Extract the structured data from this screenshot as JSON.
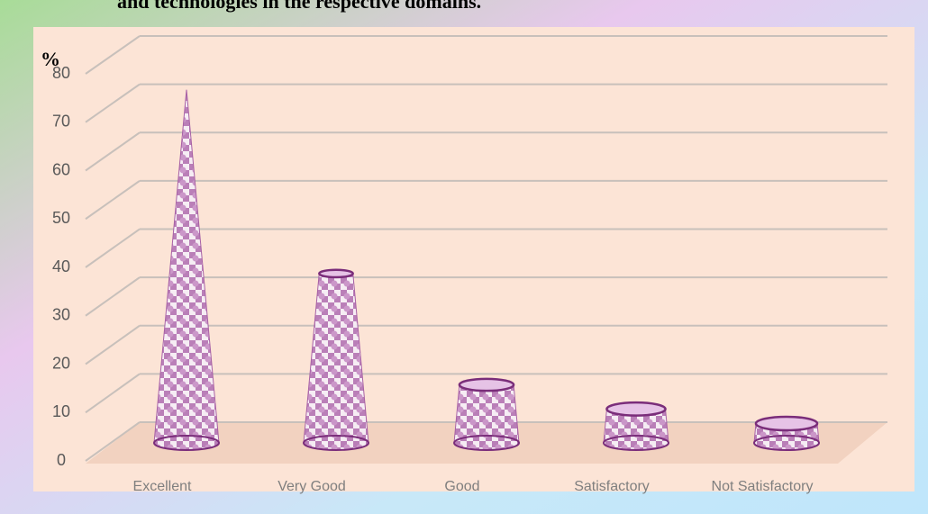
{
  "chart_data": {
    "type": "cone",
    "title": "and technologies in the respective domains.",
    "y_label": "%",
    "categories": [
      "Excellent",
      "Very Good",
      "Good",
      "Satisfactory",
      "Not Satisfactory"
    ],
    "values": [
      73,
      35,
      12,
      7,
      4
    ],
    "color": "#a35aa3",
    "ylim": [
      0,
      80
    ],
    "yticks": [
      0,
      10,
      20,
      30,
      40,
      50,
      60,
      70,
      80
    ],
    "grid": true
  }
}
